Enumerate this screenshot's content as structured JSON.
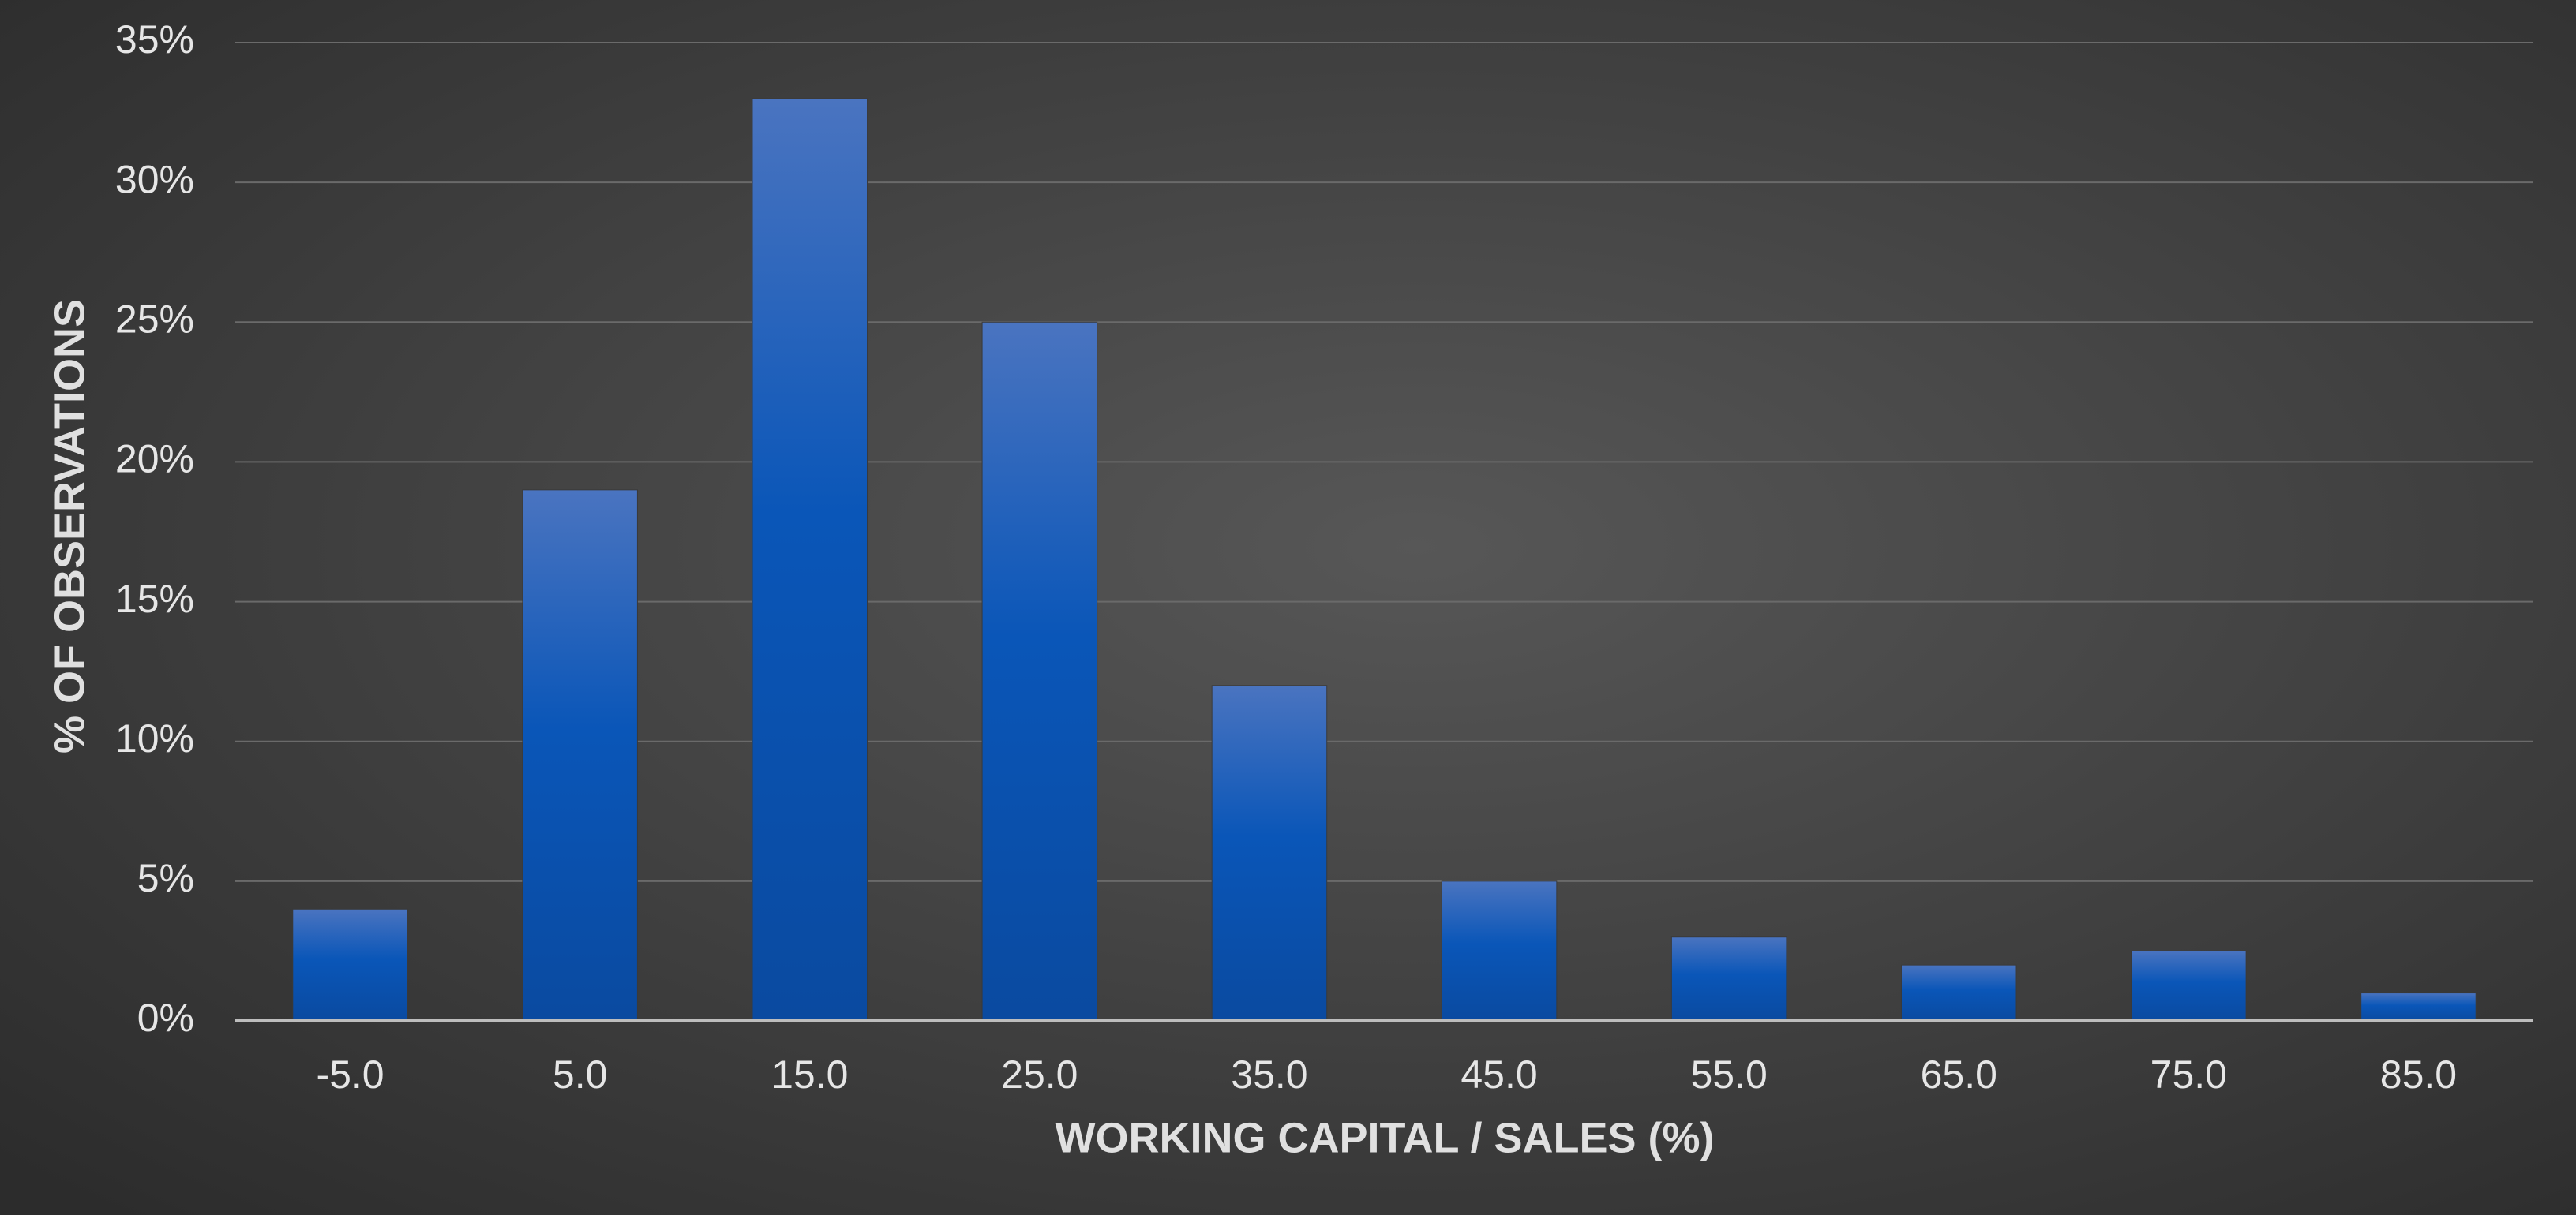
{
  "chart_data": {
    "type": "bar",
    "x_label": "WORKING CAPITAL / SALES (%)",
    "y_label": "% OF OBSERVATIONS",
    "categories": [
      "-5.0",
      "5.0",
      "15.0",
      "25.0",
      "35.0",
      "45.0",
      "55.0",
      "65.0",
      "75.0",
      "85.0"
    ],
    "values": [
      4,
      19,
      33,
      25,
      12,
      5,
      3,
      2,
      2.5,
      1
    ],
    "color": "#0a52b5",
    "ylim": [
      0,
      35
    ],
    "yticks": [
      {
        "value": 0,
        "label": "0%"
      },
      {
        "value": 5,
        "label": "5%"
      },
      {
        "value": 10,
        "label": "10%"
      },
      {
        "value": 15,
        "label": "15%"
      },
      {
        "value": 20,
        "label": "20%"
      },
      {
        "value": 25,
        "label": "25%"
      },
      {
        "value": 30,
        "label": "30%"
      },
      {
        "value": 35,
        "label": "35%"
      }
    ],
    "grid": true
  }
}
